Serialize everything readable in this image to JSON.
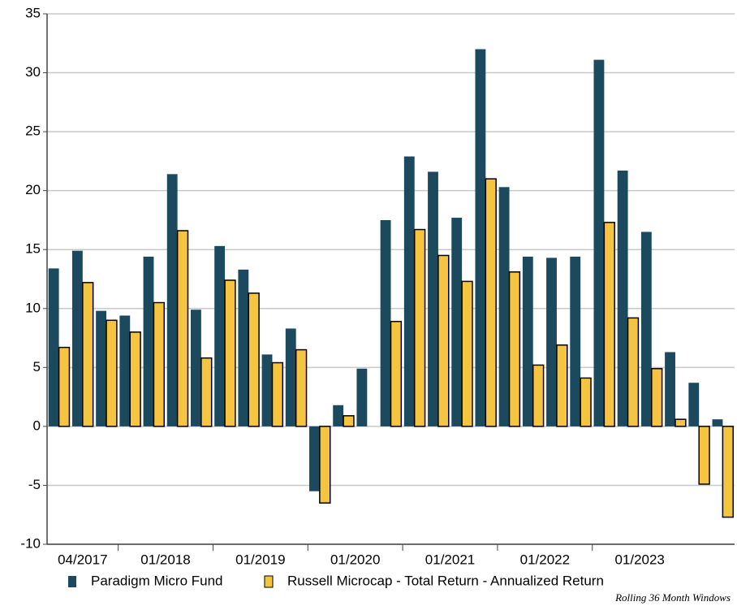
{
  "chart_data": {
    "type": "bar",
    "categories": [
      "04/2017",
      null,
      null,
      "01/2018",
      null,
      null,
      null,
      "01/2019",
      null,
      null,
      null,
      "01/2020",
      null,
      null,
      null,
      "01/2021",
      null,
      null,
      null,
      "01/2022",
      null,
      null,
      null,
      "01/2023",
      null,
      null,
      null,
      null,
      null
    ],
    "series": [
      {
        "name": "Paradigm Micro Fund",
        "color": "#1b4a5e",
        "values": [
          13.4,
          14.9,
          9.8,
          9.4,
          14.4,
          21.4,
          9.9,
          15.3,
          13.3,
          6.1,
          8.3,
          -5.5,
          1.8,
          4.9,
          17.5,
          22.9,
          21.6,
          17.7,
          32.0,
          20.3,
          14.4,
          14.3,
          14.4,
          31.1,
          21.7,
          16.5,
          6.3,
          3.7,
          0.6
        ]
      },
      {
        "name": "Russell Microcap - Total Return - Annualized Return",
        "color": "#f5c542",
        "values": [
          6.7,
          12.2,
          9.0,
          8.0,
          10.5,
          16.6,
          5.8,
          12.4,
          11.3,
          5.4,
          6.5,
          -6.5,
          0.9,
          0.0,
          8.9,
          16.7,
          14.5,
          12.3,
          21.0,
          13.1,
          5.2,
          6.9,
          4.1,
          17.3,
          9.2,
          4.9,
          0.6,
          -4.9,
          -7.7
        ]
      }
    ],
    "ylim": [
      -10,
      35
    ],
    "yticks": [
      -10,
      -5,
      0,
      5,
      10,
      15,
      20,
      25,
      30,
      35
    ],
    "grid": true,
    "footnote": "Rolling 36 Month Windows"
  }
}
